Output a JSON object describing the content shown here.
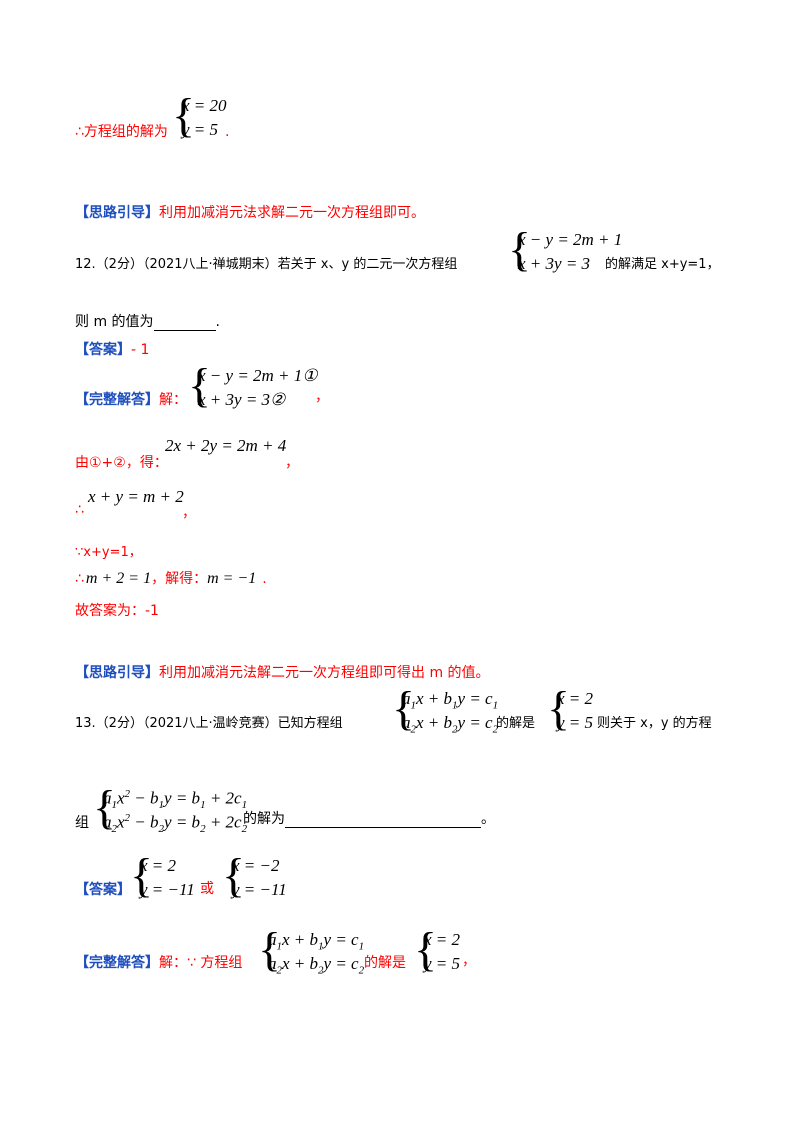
{
  "line1": {
    "prefix": "∴方程组的解为",
    "eq1": "x = 20",
    "eq2": "y = 5",
    "suffix": "."
  },
  "hint1": {
    "tag": "【思路引导】",
    "text": "利用加减消元法求解二元一次方程组即可。"
  },
  "q12": {
    "lead": "12.（2分）（2021八上·禅城期末）若关于 x、y 的二元一次方程组",
    "eq1": "x − y = 2m + 1",
    "eq2": "x + 3y = 3",
    "tail": "的解满足 x+y=1，",
    "line2": "则 m 的值为",
    "line2_end": "."
  },
  "ans12": {
    "tag": "【答案】",
    "text": "- 1"
  },
  "sol12": {
    "tag": "【完整解答】",
    "lead": "解：",
    "eq1": "x − y = 2m + 1①",
    "eq2": "x + 3y = 3②",
    "comma": "，",
    "step1_prefix": "由①+②，得：",
    "step1_eq": "2x + 2y = 2m + 4",
    "step1_comma": "，",
    "step2_prefix": "∴",
    "step2_eq": "x + y = m + 2",
    "step2_comma": "，",
    "step3": "∵x+y=1，",
    "step4_prefix": "∴",
    "step4_eq": "m + 2 = 1",
    "step4_mid": "，解得：",
    "step4_eq2": "m = −1",
    "step4_end": ".",
    "final": "故答案为：-1"
  },
  "hint2": {
    "tag": "【思路引导】",
    "text": "利用加减消元法解二元一次方程组即可得出 m 的值。"
  },
  "q13": {
    "lead": "13.（2分）（2021八上·温岭竞赛）已知方程组",
    "mid": "的解是",
    "sol1": "x = 2",
    "sol2": "y = 5",
    "tail": "则关于 x，y 的方程",
    "line2_prefix": "组",
    "line2_mid": "的解为",
    "line2_end": "。"
  },
  "ans13": {
    "tag": "【答案】",
    "a1": "x = 2",
    "a2": "y = −11",
    "or": "或",
    "b1": "x = −2",
    "b2": "y = −11"
  },
  "sol13": {
    "tag": "【完整解答】",
    "lead": "解：∵ 方程组",
    "mid": "的解是",
    "s1": "x = 2",
    "s2": "y = 5",
    "comma": "，"
  }
}
